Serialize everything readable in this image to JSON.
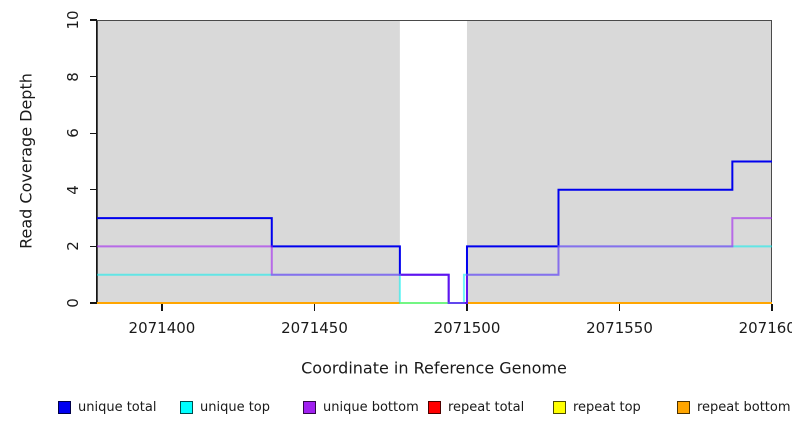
{
  "figure": {
    "y_axis_title": "Read Coverage Depth",
    "x_axis_title": "Coordinate in Reference Genome"
  },
  "chart_data": {
    "type": "line",
    "subtype": "step-coverage",
    "title": "",
    "xlabel": "Coordinate in Reference Genome",
    "ylabel": "Read Coverage Depth",
    "xlim": [
      2071378.7,
      2071600
    ],
    "ylim": [
      0,
      10
    ],
    "x_ticks": [
      2071400,
      2071450,
      2071500,
      2071550,
      2071600
    ],
    "y_ticks": [
      0,
      2,
      4,
      6,
      8,
      10
    ],
    "grid": "off",
    "legend_position": "bottom",
    "background_mask": {
      "color": "#d9d9d9",
      "regions": [
        [
          2071378.7,
          2071478
        ],
        [
          2071500,
          2071600
        ]
      ]
    },
    "border_color": "#4a4a4a",
    "draw_order": [
      "repeat total",
      "repeat top",
      "repeat bottom",
      "unique total",
      "unique top",
      "unique bottom"
    ],
    "series": [
      {
        "name": "unique total",
        "color": "#0000ee",
        "width": 2,
        "opacity": 1,
        "segments": [
          [
            [
              2071378.7,
              3
            ],
            [
              2071436,
              2
            ],
            [
              2071478,
              1
            ],
            [
              2071494,
              0
            ],
            [
              2071500,
              2
            ],
            [
              2071530,
              4
            ],
            [
              2071587,
              5
            ],
            [
              2071600,
              5
            ]
          ]
        ]
      },
      {
        "name": "unique top",
        "color": "#00eeee",
        "width": 2,
        "opacity": 0.55,
        "segments": [
          [
            [
              2071378.7,
              1
            ],
            [
              2071478,
              0
            ],
            [
              2071499,
              1
            ],
            [
              2071530,
              2
            ],
            [
              2071600,
              2
            ]
          ]
        ]
      },
      {
        "name": "unique bottom",
        "color": "#a020f0",
        "width": 2,
        "opacity": 0.6,
        "segments": [
          [
            [
              2071378.7,
              2
            ],
            [
              2071436,
              1
            ],
            [
              2071494,
              0
            ],
            [
              2071500,
              1
            ],
            [
              2071530,
              2
            ],
            [
              2071587,
              3
            ],
            [
              2071600,
              3
            ]
          ]
        ]
      },
      {
        "name": "repeat total",
        "color": "#ee0000",
        "width": 2,
        "opacity": 1,
        "segments": [
          [
            [
              2071378.7,
              0
            ],
            [
              2071600,
              0
            ]
          ]
        ]
      },
      {
        "name": "repeat top",
        "color": "#ffff00",
        "width": 2,
        "opacity": 1,
        "segments": [
          [
            [
              2071378.7,
              0
            ],
            [
              2071600,
              0
            ]
          ]
        ]
      },
      {
        "name": "repeat bottom",
        "color": "#ffa500",
        "width": 2,
        "opacity": 1,
        "segments": [
          [
            [
              2071378.7,
              0
            ],
            [
              2071478,
              0
            ]
          ],
          [
            [
              2071500,
              0
            ],
            [
              2071600,
              0
            ]
          ]
        ]
      }
    ]
  },
  "legend": {
    "items": [
      {
        "label": "unique total",
        "color": "#0000f0"
      },
      {
        "label": "unique top",
        "color": "#00ffff"
      },
      {
        "label": "unique bottom",
        "color": "#a020f0"
      },
      {
        "label": "repeat total",
        "color": "#ff0000"
      },
      {
        "label": "repeat top",
        "color": "#ffff00"
      },
      {
        "label": "repeat bottom",
        "color": "#ffa500"
      }
    ]
  }
}
